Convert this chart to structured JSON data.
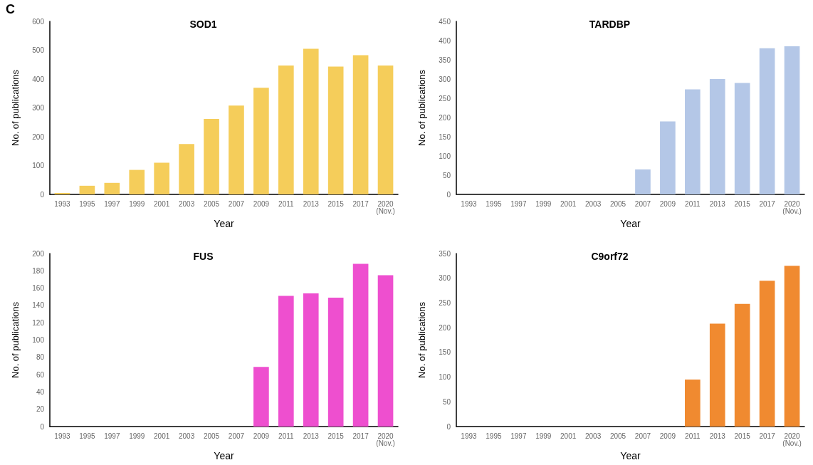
{
  "chart_data": [
    {
      "type": "bar",
      "title": "SOD1",
      "xlabel": "Year",
      "ylabel": "No. of publications",
      "annotations": [
        "C"
      ],
      "categories": [
        "1993",
        "1995",
        "1997",
        "1999",
        "2001",
        "2003",
        "2005",
        "2007",
        "2009",
        "2011",
        "2013",
        "2015",
        "2017",
        "2020\n(Nov.)"
      ],
      "values": [
        5,
        30,
        40,
        85,
        110,
        175,
        262,
        308,
        370,
        447,
        505,
        443,
        483,
        447
      ],
      "color": "#f5cd5a",
      "ylim": [
        0,
        600
      ],
      "yticks": [
        0,
        100,
        200,
        300,
        400,
        500,
        600
      ],
      "grid": false
    },
    {
      "type": "bar",
      "title": "TARDBP",
      "xlabel": "Year",
      "ylabel": "No. of publications",
      "categories": [
        "1993",
        "1995",
        "1997",
        "1999",
        "2001",
        "2003",
        "2005",
        "2007",
        "2009",
        "2011",
        "2013",
        "2015",
        "2017",
        "2020\n(Nov.)"
      ],
      "values": [
        0,
        0,
        0,
        0,
        0,
        0,
        0,
        65,
        190,
        273,
        300,
        290,
        380,
        385
      ],
      "color": "#b4c7e7",
      "ylim": [
        0,
        450
      ],
      "yticks": [
        0,
        50,
        100,
        150,
        200,
        250,
        300,
        350,
        400,
        450
      ],
      "grid": false
    },
    {
      "type": "bar",
      "title": "FUS",
      "xlabel": "Year",
      "ylabel": "No. of publications",
      "categories": [
        "1993",
        "1995",
        "1997",
        "1999",
        "2001",
        "2003",
        "2005",
        "2007",
        "2009",
        "2011",
        "2013",
        "2015",
        "2017",
        "2020\n(Nov.)"
      ],
      "values": [
        0,
        0,
        0,
        0,
        0,
        0,
        0,
        0,
        69,
        151,
        154,
        149,
        188,
        175
      ],
      "color": "#ee4fcf",
      "ylim": [
        0,
        200
      ],
      "yticks": [
        0,
        20,
        40,
        60,
        80,
        100,
        120,
        140,
        160,
        180,
        200
      ],
      "grid": false
    },
    {
      "type": "bar",
      "title": "C9orf72",
      "xlabel": "Year",
      "ylabel": "No. of publications",
      "categories": [
        "1993",
        "1995",
        "1997",
        "1999",
        "2001",
        "2003",
        "2005",
        "2007",
        "2009",
        "2011",
        "2013",
        "2015",
        "2017",
        "2020\n(Nov.)"
      ],
      "values": [
        0,
        0,
        0,
        0,
        0,
        0,
        0,
        0,
        0,
        95,
        208,
        248,
        295,
        325
      ],
      "color": "#f08a30",
      "ylim": [
        0,
        350
      ],
      "yticks": [
        0,
        50,
        100,
        150,
        200,
        250,
        300,
        350
      ],
      "grid": false
    }
  ]
}
